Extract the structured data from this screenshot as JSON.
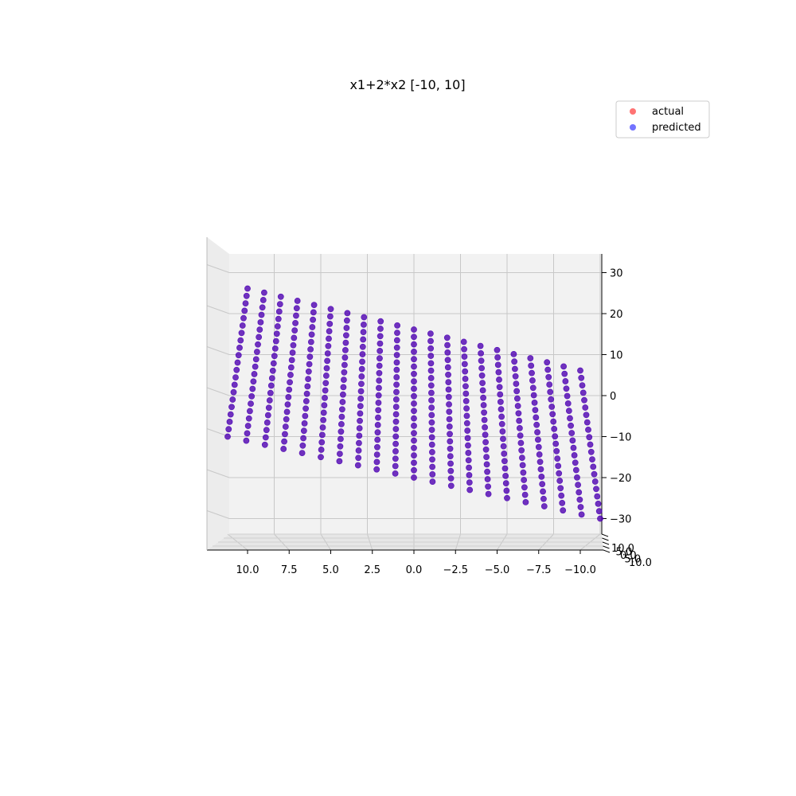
{
  "chart_data": {
    "type": "scatter",
    "projection": "3d",
    "title": "x1+2*x2 [-10, 10]",
    "x_ticks": [
      "10.0",
      "7.5",
      "5.0",
      "2.5",
      "0.0",
      "−2.5",
      "−5.0",
      "−7.5",
      "−10.0"
    ],
    "y_tick_overlap": [
      "10.0",
      "5.0",
      "0.0",
      "5.0",
      "10.0"
    ],
    "z_ticks": [
      "30",
      "20",
      "10",
      "0",
      "−10",
      "−20",
      "−30"
    ],
    "x_range": [
      -10,
      10
    ],
    "y_range": [
      -10,
      10
    ],
    "z_range": [
      -30,
      30
    ],
    "grid": true,
    "legend": {
      "placement": "top-right",
      "entries": [
        {
          "label": "actual",
          "color": "#ff0000",
          "alpha": 0.55
        },
        {
          "label": "predicted",
          "color": "#0000ff",
          "alpha": 0.55
        }
      ]
    },
    "function": "z = x1 + 2*x2",
    "x1_values": [
      -10,
      -9,
      -8,
      -7,
      -6,
      -5,
      -4,
      -3,
      -2,
      -1,
      0,
      1,
      2,
      3,
      4,
      5,
      6,
      7,
      8,
      9,
      10
    ],
    "x2_values": [
      -10,
      -9,
      -8,
      -7,
      -6,
      -5,
      -4,
      -3,
      -2,
      -1,
      0,
      1,
      2,
      3,
      4,
      5,
      6,
      7,
      8,
      9,
      10
    ],
    "series": [
      {
        "name": "actual",
        "color": "#ff0000",
        "formula": "x1+2*x2"
      },
      {
        "name": "predicted",
        "color": "#0000ff",
        "formula": "x1+2*x2"
      }
    ]
  }
}
